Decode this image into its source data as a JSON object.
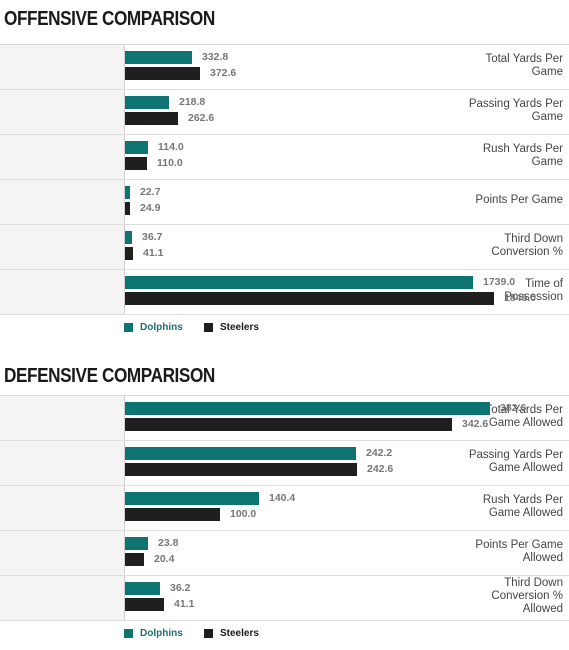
{
  "colors": {
    "dolphins": "#0e7471",
    "steelers": "#1f1f1f",
    "dolphins_label": "#1f6f6c",
    "steelers_label": "#1a1a1a"
  },
  "chart_data": [
    {
      "type": "bar",
      "orientation": "horizontal",
      "title": "OFFENSIVE COMPARISON",
      "xlim": [
        0,
        2100
      ],
      "legend": "bottom-left",
      "categories": [
        [
          "Total Yards Per",
          "Game"
        ],
        [
          "Passing Yards Per",
          "Game"
        ],
        [
          "Rush Yards Per",
          "Game"
        ],
        [
          "Points Per Game"
        ],
        [
          "Third Down",
          "Conversion %"
        ],
        [
          "Time of",
          "Possession"
        ]
      ],
      "series": [
        {
          "name": "Dolphins",
          "values": [
            332.8,
            218.8,
            114.0,
            22.7,
            36.7,
            1739.0
          ],
          "labels": [
            "332.8",
            "218.8",
            "114.0",
            "22.7",
            "36.7",
            "1739.0"
          ]
        },
        {
          "name": "Steelers",
          "values": [
            372.6,
            262.6,
            110.0,
            24.9,
            41.1,
            1845.0
          ],
          "labels": [
            "372.6",
            "262.6",
            "110.0",
            "24.9",
            "41.1",
            "1845.0"
          ]
        }
      ]
    },
    {
      "type": "bar",
      "orientation": "horizontal",
      "title": "DEFENSIVE COMPARISON",
      "xlim": [
        0,
        440
      ],
      "legend": "bottom-left",
      "categories": [
        [
          "Total Yards Per",
          "Game Allowed"
        ],
        [
          "Passing Yards Per",
          "Game Allowed"
        ],
        [
          "Rush Yards Per",
          "Game Allowed"
        ],
        [
          "Points Per Game",
          "Allowed"
        ],
        [
          "Third Down",
          "Conversion %",
          "Allowed"
        ]
      ],
      "series": [
        {
          "name": "Dolphins",
          "values": [
            382.6,
            242.2,
            140.4,
            23.8,
            36.2
          ],
          "labels": [
            "382.6",
            "242.2",
            "140.4",
            "23.8",
            "36.2"
          ]
        },
        {
          "name": "Steelers",
          "values": [
            342.6,
            242.6,
            100.0,
            20.4,
            41.1
          ],
          "labels": [
            "342.6",
            "242.6",
            "100.0",
            "20.4",
            "41.1"
          ]
        }
      ]
    }
  ]
}
